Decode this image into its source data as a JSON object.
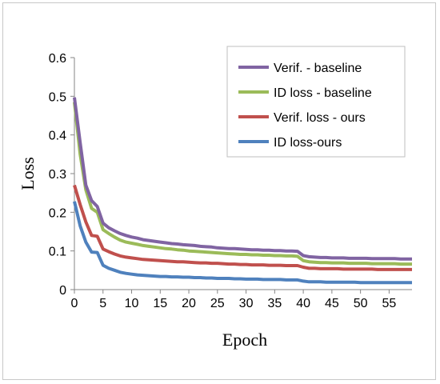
{
  "chart_data": {
    "type": "line",
    "xlabel": "Epoch",
    "ylabel": "Loss",
    "xlim": [
      0,
      59
    ],
    "ylim": [
      0,
      0.6
    ],
    "x_ticks": [
      0,
      5,
      10,
      15,
      20,
      25,
      30,
      35,
      40,
      45,
      50,
      55
    ],
    "y_ticks": [
      0,
      0.1,
      0.2,
      0.3,
      0.4,
      0.5,
      0.6
    ],
    "y_tick_labels": [
      "0",
      "0.1",
      "0.2",
      "0.3",
      "0.4",
      "0.5",
      "0.6"
    ],
    "grid": false,
    "legend_position": "top-right",
    "x": [
      0,
      1,
      2,
      3,
      4,
      5,
      6,
      7,
      8,
      9,
      10,
      11,
      12,
      13,
      14,
      15,
      16,
      17,
      18,
      19,
      20,
      21,
      22,
      23,
      24,
      25,
      26,
      27,
      28,
      29,
      30,
      31,
      32,
      33,
      34,
      35,
      36,
      37,
      38,
      39,
      40,
      41,
      42,
      43,
      44,
      45,
      46,
      47,
      48,
      49,
      50,
      51,
      52,
      53,
      54,
      55,
      56,
      57,
      58,
      59
    ],
    "series": [
      {
        "name": "Verif. - baseline",
        "color": "#8064a2",
        "values": [
          0.497,
          0.38,
          0.27,
          0.23,
          0.215,
          0.172,
          0.16,
          0.152,
          0.145,
          0.14,
          0.136,
          0.133,
          0.129,
          0.127,
          0.125,
          0.123,
          0.121,
          0.119,
          0.118,
          0.116,
          0.115,
          0.114,
          0.112,
          0.111,
          0.11,
          0.108,
          0.107,
          0.106,
          0.106,
          0.105,
          0.104,
          0.103,
          0.103,
          0.102,
          0.102,
          0.101,
          0.101,
          0.1,
          0.1,
          0.099,
          0.088,
          0.085,
          0.084,
          0.083,
          0.083,
          0.082,
          0.082,
          0.082,
          0.081,
          0.081,
          0.081,
          0.081,
          0.08,
          0.08,
          0.08,
          0.08,
          0.08,
          0.079,
          0.079,
          0.079
        ]
      },
      {
        "name": "ID loss - baseline",
        "color": "#9bbb59",
        "values": [
          0.485,
          0.35,
          0.258,
          0.21,
          0.2,
          0.155,
          0.145,
          0.136,
          0.128,
          0.123,
          0.12,
          0.117,
          0.114,
          0.112,
          0.11,
          0.108,
          0.106,
          0.105,
          0.103,
          0.102,
          0.1,
          0.099,
          0.098,
          0.097,
          0.096,
          0.095,
          0.094,
          0.093,
          0.092,
          0.091,
          0.091,
          0.09,
          0.09,
          0.089,
          0.089,
          0.088,
          0.088,
          0.087,
          0.087,
          0.086,
          0.075,
          0.072,
          0.071,
          0.07,
          0.07,
          0.069,
          0.069,
          0.069,
          0.068,
          0.068,
          0.068,
          0.068,
          0.067,
          0.067,
          0.067,
          0.067,
          0.067,
          0.066,
          0.066,
          0.066
        ]
      },
      {
        "name": "Verif. loss - ours",
        "color": "#c0504d",
        "values": [
          0.27,
          0.22,
          0.175,
          0.14,
          0.138,
          0.105,
          0.098,
          0.092,
          0.087,
          0.084,
          0.082,
          0.08,
          0.078,
          0.077,
          0.076,
          0.075,
          0.074,
          0.073,
          0.072,
          0.072,
          0.071,
          0.07,
          0.069,
          0.069,
          0.068,
          0.068,
          0.067,
          0.066,
          0.066,
          0.065,
          0.065,
          0.064,
          0.064,
          0.064,
          0.063,
          0.063,
          0.063,
          0.062,
          0.062,
          0.062,
          0.058,
          0.055,
          0.055,
          0.054,
          0.054,
          0.054,
          0.054,
          0.053,
          0.053,
          0.053,
          0.053,
          0.053,
          0.053,
          0.052,
          0.052,
          0.052,
          0.052,
          0.052,
          0.052,
          0.052
        ]
      },
      {
        "name": "ID loss-ours",
        "color": "#4f81bd",
        "values": [
          0.228,
          0.165,
          0.123,
          0.097,
          0.096,
          0.063,
          0.055,
          0.05,
          0.045,
          0.042,
          0.04,
          0.038,
          0.037,
          0.036,
          0.035,
          0.034,
          0.034,
          0.033,
          0.033,
          0.032,
          0.032,
          0.031,
          0.031,
          0.03,
          0.03,
          0.029,
          0.029,
          0.029,
          0.028,
          0.028,
          0.027,
          0.027,
          0.027,
          0.026,
          0.026,
          0.026,
          0.026,
          0.025,
          0.025,
          0.025,
          0.022,
          0.02,
          0.02,
          0.02,
          0.019,
          0.019,
          0.019,
          0.019,
          0.019,
          0.019,
          0.018,
          0.018,
          0.018,
          0.018,
          0.018,
          0.018,
          0.018,
          0.018,
          0.018,
          0.018
        ]
      }
    ]
  }
}
